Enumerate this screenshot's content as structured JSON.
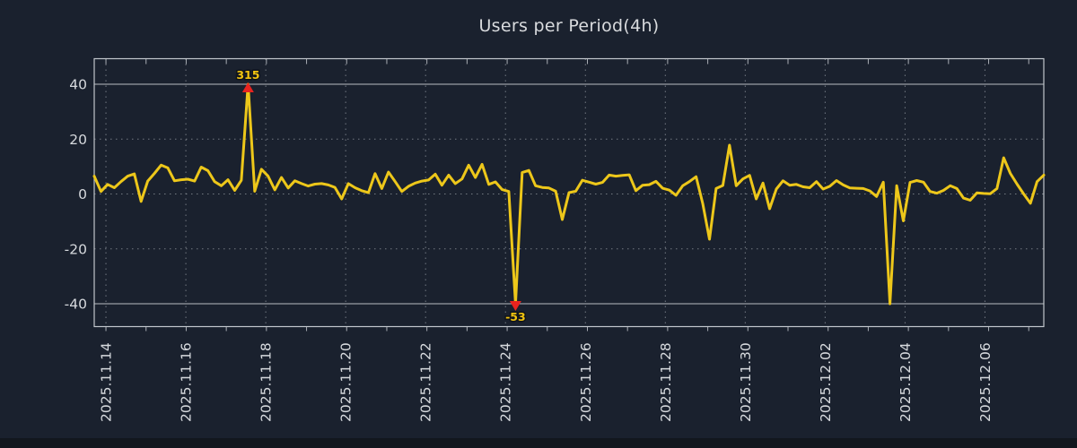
{
  "title": "Users per Period(4h)",
  "chart_data": {
    "type": "line",
    "title": "Users per Period(4h)",
    "x_step_hours": 4,
    "x_tick_labels": [
      "2025.11.14",
      "2025.11.16",
      "2025.11.18",
      "2025.11.20",
      "2025.11.22",
      "2025.11.24",
      "2025.11.26",
      "2025.11.28",
      "2025.11.30",
      "2025.12.02",
      "2025.12.04",
      "2025.12.06"
    ],
    "y_ticks": [
      40,
      20,
      0,
      -20,
      -40
    ],
    "ylim": [
      -48,
      49
    ],
    "clip_range": [
      -40,
      40
    ],
    "grid": true,
    "legend_position": "none",
    "background_color": "#1a212e",
    "line_color": "#edc71a",
    "marker_color": "#e8231f",
    "outlier_label_color": "#f2c40f",
    "axis_text_color": "#d6d9dd",
    "series": [
      {
        "name": "Users",
        "values": [
          6.5,
          0.9,
          3.5,
          2.3,
          4.5,
          6.5,
          7.3,
          -2.7,
          4.7,
          7.5,
          10.5,
          9.5,
          4.8,
          5.2,
          5.4,
          4.7,
          9.8,
          8.5,
          4.5,
          3.0,
          5.2,
          1.3,
          5.0,
          315,
          1.0,
          9.0,
          6.5,
          1.5,
          6.0,
          2.2,
          4.8,
          3.8,
          2.9,
          3.6,
          3.8,
          3.3,
          2.4,
          -1.8,
          3.8,
          2.3,
          1.2,
          0.5,
          7.4,
          2.0,
          8.0,
          4.5,
          0.9,
          2.8,
          4.0,
          4.7,
          5.1,
          7.2,
          3.2,
          6.9,
          3.8,
          5.5,
          10.5,
          6.0,
          10.8,
          3.5,
          4.4,
          1.6,
          0.9,
          -53,
          7.8,
          8.6,
          3.0,
          2.4,
          2.2,
          1.0,
          -9.3,
          0.5,
          1.0,
          5.0,
          4.3,
          3.6,
          4.2,
          6.9,
          6.5,
          6.8,
          7.0,
          1.2,
          3.2,
          3.4,
          4.6,
          2.1,
          1.4,
          -0.5,
          3.0,
          4.5,
          6.3,
          -3.5,
          -16.5,
          2.0,
          3.1,
          17.8,
          3.0,
          5.5,
          6.8,
          -1.8,
          4.0,
          -5.4,
          1.8,
          4.8,
          3.2,
          3.5,
          2.6,
          2.3,
          4.5,
          1.8,
          2.8,
          4.9,
          3.3,
          2.2,
          2.1,
          2.0,
          1.1,
          -0.9,
          4.3,
          -40,
          3.0,
          -9.8,
          4.2,
          4.9,
          4.3,
          0.9,
          0.3,
          1.3,
          3.0,
          2.0,
          -1.5,
          -2.3,
          0.4,
          0.2,
          0.1,
          2.0,
          13.2,
          7.5,
          3.6,
          0.0,
          -3.4,
          4.5,
          6.9
        ]
      }
    ],
    "annotations": [
      {
        "index": 23,
        "value": 315,
        "label": "315",
        "marker": "triangle-up"
      },
      {
        "index": 63,
        "value": -53,
        "label": "-53",
        "marker": "triangle-down"
      }
    ]
  }
}
